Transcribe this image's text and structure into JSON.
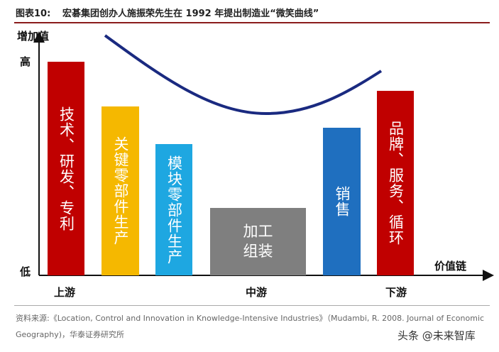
{
  "header": {
    "label": "图表10:",
    "title": "宏碁集团创办人施振荣先生在 1992 年提出制造业“微笑曲线”"
  },
  "y_axis": {
    "label": "增加值",
    "high": "高",
    "low": "低"
  },
  "x_axis": {
    "label": "价值链",
    "stages": [
      "上游",
      "中游",
      "下游"
    ]
  },
  "bars": [
    {
      "label": "技术、研发、专利"
    },
    {
      "label": "关键零部件生产"
    },
    {
      "label": "模块零部件生产"
    },
    {
      "label": "加工组装"
    },
    {
      "label": "销售"
    },
    {
      "label": "品牌、服务、循环"
    }
  ],
  "source": [
    "资料来源:《Location, Control and Innovation in Knowledge-Intensive Industries》（Mudambi, R. 2008. Journal of Economic",
    "Geography)，华泰证券研究所"
  ],
  "watermark": "头条 @未来智库"
}
